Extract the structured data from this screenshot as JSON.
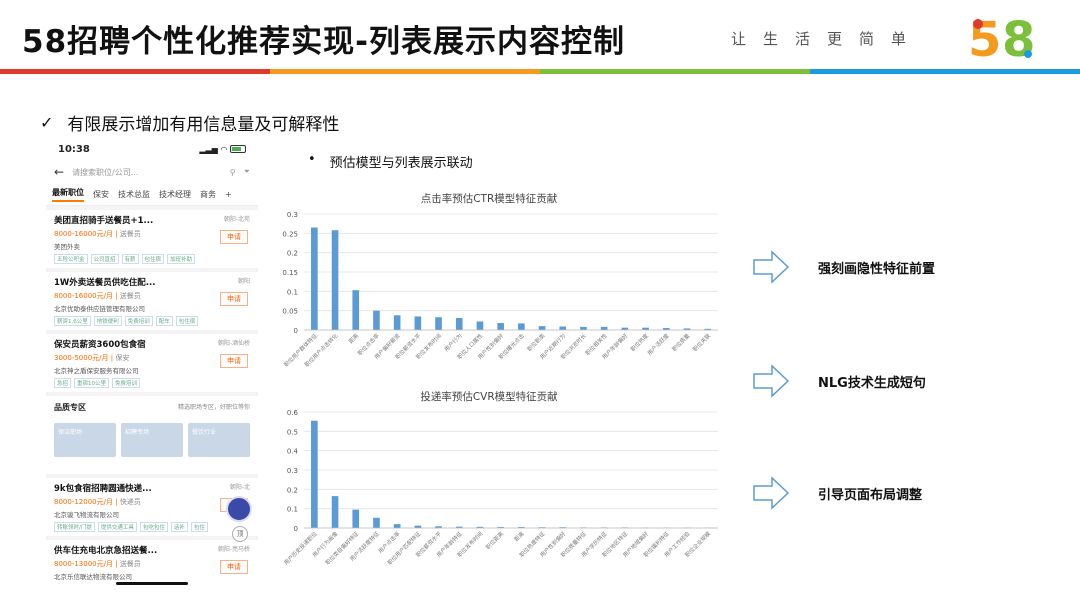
{
  "slide": {
    "title": "58招聘个性化推荐实现-列表展示内容控制",
    "slogan": "让生活更简单",
    "logo_text": "58",
    "colors": {
      "rainbow": [
        "#e03a2d",
        "#f39a1f",
        "#7bbf3a",
        "#1e9be0"
      ],
      "bar": "#5b9bd5",
      "arrow": "#5b9bd5"
    }
  },
  "main_point": {
    "check_icon": "check-icon",
    "text": "有限展示增加有用信息量及可解释性"
  },
  "phone": {
    "time": "10:38",
    "search_placeholder": "请搜索职位/公司...",
    "tabs": [
      "最新职位",
      "保安",
      "技术总监",
      "技术经理",
      "商务"
    ],
    "jobs": [
      {
        "title": "美团直招骑手送餐员+1...",
        "loc": "朝阳-北苑",
        "salary": "8000-16000元/月",
        "type": "送餐员",
        "company": "美团外卖",
        "tags": [
          "五险公积金",
          "公司直招",
          "有薪",
          "包住宿",
          "加班补助"
        ],
        "apply": "申请"
      },
      {
        "title": "1W外卖送餐员供吃住配...",
        "loc": "朝阳",
        "salary": "8000-16000元/月",
        "type": "送餐员",
        "company": "北京优助泰供应链管理有限公司",
        "tags": [
          "薪资1.6公里",
          "地铁便利",
          "免费培训",
          "配车",
          "包住宿"
        ],
        "apply": "申请"
      },
      {
        "title": "保安员薪资3600包食宿",
        "loc": "朝阳-酒仙桥",
        "salary": "3000-5000元/月",
        "type": "保安",
        "company": "北京神之盾保安服务有限公司",
        "tags": [
          "急招",
          "重宿10公里",
          "免费培训"
        ],
        "apply": "申请"
      }
    ],
    "zone": {
      "title": "品质专区",
      "more": "精选职场专区，好职位等你",
      "cards": [
        "保洁职场",
        "招聘专场",
        "餐饮行业"
      ]
    },
    "jobs2": [
      {
        "title": "9k包食宿招聘圆通快递...",
        "loc": "朝阳-北",
        "salary": "8000-12000元/月",
        "type": "快递员",
        "company": "北京骏飞物流有限公司",
        "tags": [
          "转账领时/门提",
          "提供交通工具",
          "包吃包住",
          "话补",
          "包住"
        ],
        "apply": "申请"
      },
      {
        "title": "供车住充电北京急招送餐...",
        "loc": "朝阳-亮马桥",
        "salary": "8000-13000元/月",
        "type": "送餐员",
        "company": "北京乐信联达物流有限公司",
        "tags": [],
        "apply": "申请"
      }
    ],
    "up_label": "顶"
  },
  "sub_point": {
    "bullet": "•",
    "text": "预估模型与列表展示联动"
  },
  "chart_data": [
    {
      "type": "bar",
      "title": "点击率预估CTR模型特征贡献",
      "ylim": [
        0,
        0.3
      ],
      "yticks": [
        "0",
        "0.05",
        "0.1",
        "0.15",
        "0.2",
        "0.25",
        "0.3"
      ],
      "categories": [
        "职位用户群体特征",
        "职位用户点击转化",
        "距离",
        "职位点击率",
        "用户偏好薪资",
        "职位薪资水平",
        "职位发布时间",
        "用户行为",
        "职位人口属性",
        "用户性别偏好",
        "职位曝光点击",
        "职位职类",
        "用户近期行为",
        "职位浏览时长",
        "职位相关性",
        "用户年龄偏好",
        "职位热度",
        "用户活跃度",
        "职位质量",
        "职位关联"
      ],
      "values": [
        0.265,
        0.258,
        0.103,
        0.05,
        0.038,
        0.035,
        0.033,
        0.031,
        0.022,
        0.018,
        0.017,
        0.01,
        0.009,
        0.008,
        0.008,
        0.006,
        0.006,
        0.005,
        0.004,
        0.003
      ]
    },
    {
      "type": "bar",
      "title": "投递率预估CVR模型特征贡献",
      "ylim": [
        0,
        0.6
      ],
      "yticks": [
        "0",
        "0.1",
        "0.2",
        "0.3",
        "0.4",
        "0.5",
        "0.6"
      ],
      "categories": [
        "用户历史投递职位",
        "用户行为画像",
        "职位类目偏好特征",
        "用户活跃度特征",
        "用户点击率",
        "职位用户匹配特征",
        "职位薪资水平",
        "用户年龄特征",
        "职位发布时间",
        "职位距离",
        "距离",
        "职位热度特征",
        "用户性别偏好",
        "职位质量特征",
        "用户学历特征",
        "职位地区特征",
        "用户地域偏好",
        "职位福利特征",
        "用户工作经验",
        "职位企业规模"
      ],
      "values": [
        0.555,
        0.165,
        0.095,
        0.053,
        0.02,
        0.012,
        0.009,
        0.007,
        0.006,
        0.005,
        0.005,
        0.004,
        0.004,
        0.003,
        0.003,
        0.003,
        0.002,
        0.002,
        0.002,
        0.002
      ]
    }
  ],
  "right_points": [
    {
      "arrow_icon": "arrow-right-icon",
      "text": "强刻画隐性特征前置"
    },
    {
      "arrow_icon": "arrow-right-icon",
      "text": "NLG技术生成短句"
    },
    {
      "arrow_icon": "arrow-right-icon",
      "text": "引导页面布局调整"
    }
  ]
}
